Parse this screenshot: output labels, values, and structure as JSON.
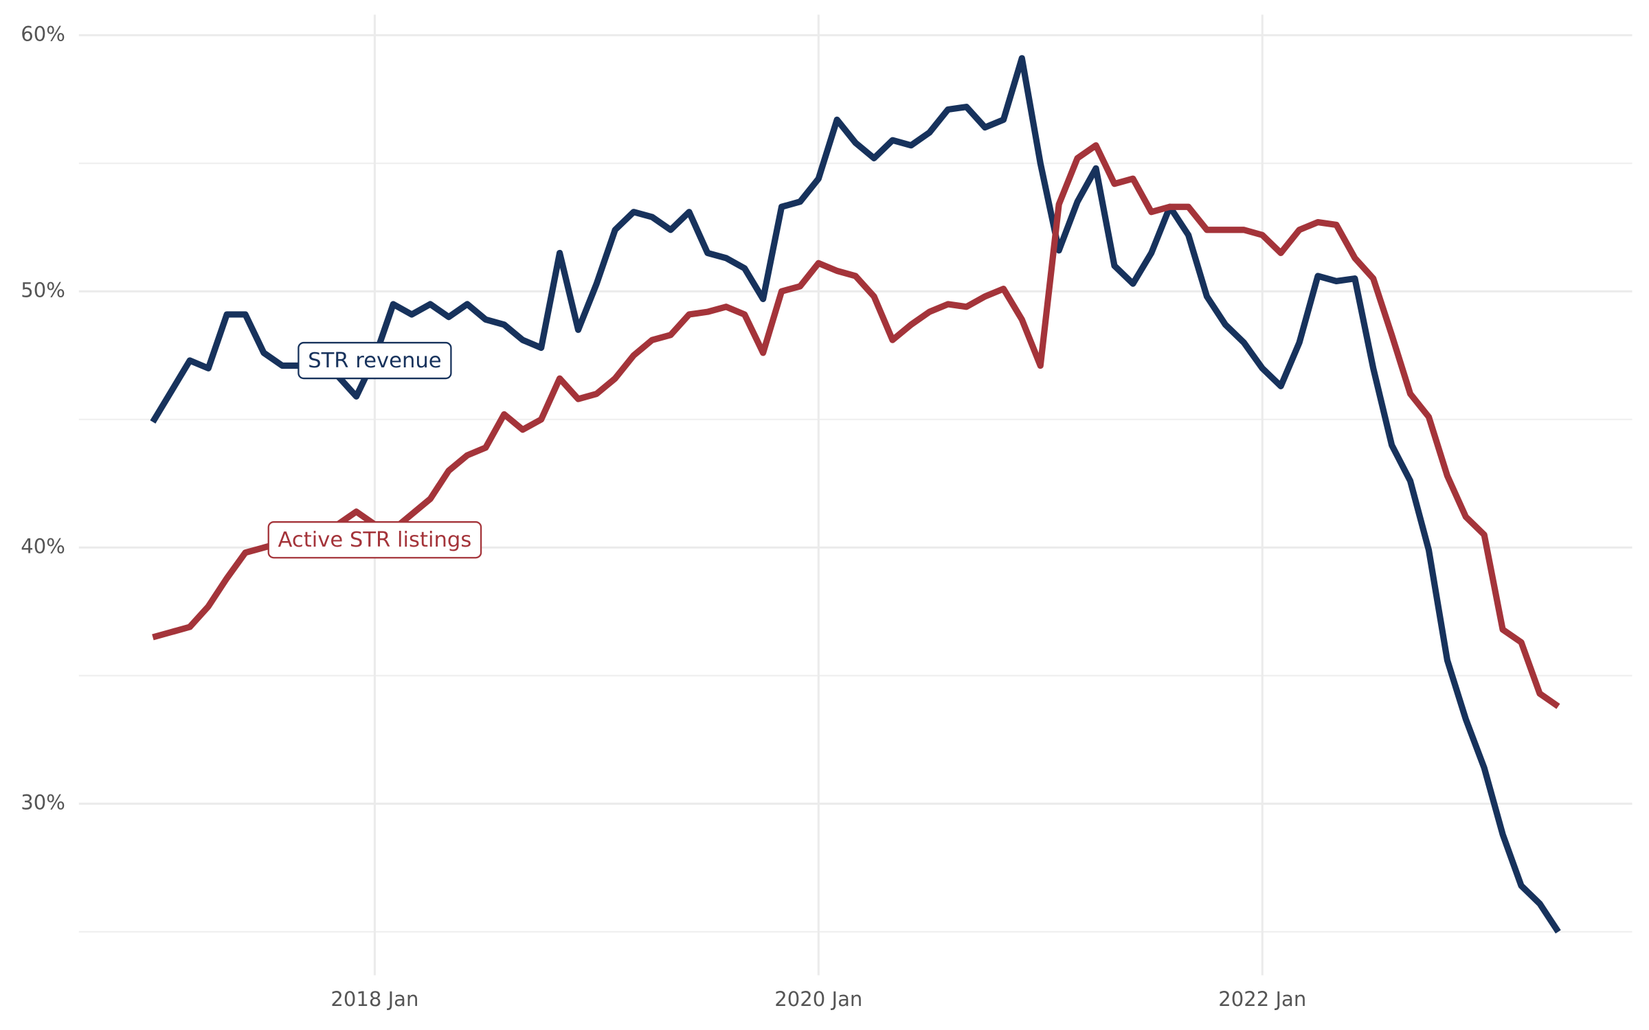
{
  "chart_data": {
    "type": "line",
    "x": [
      "2017-01",
      "2017-02",
      "2017-03",
      "2017-04",
      "2017-05",
      "2017-06",
      "2017-07",
      "2017-08",
      "2017-09",
      "2017-10",
      "2017-11",
      "2017-12",
      "2018-01",
      "2018-02",
      "2018-03",
      "2018-04",
      "2018-05",
      "2018-06",
      "2018-07",
      "2018-08",
      "2018-09",
      "2018-10",
      "2018-11",
      "2018-12",
      "2019-01",
      "2019-02",
      "2019-03",
      "2019-04",
      "2019-05",
      "2019-06",
      "2019-07",
      "2019-08",
      "2019-09",
      "2019-10",
      "2019-11",
      "2019-12",
      "2020-01",
      "2020-02",
      "2020-03",
      "2020-04",
      "2020-05",
      "2020-06",
      "2020-07",
      "2020-08",
      "2020-09",
      "2020-10",
      "2020-11",
      "2020-12",
      "2021-01",
      "2021-02",
      "2021-03",
      "2021-04",
      "2021-05",
      "2021-06",
      "2021-07",
      "2021-08",
      "2021-09",
      "2021-10",
      "2021-11",
      "2021-12",
      "2022-01",
      "2022-02",
      "2022-03",
      "2022-04",
      "2022-05",
      "2022-06",
      "2022-07",
      "2022-08",
      "2022-09",
      "2022-10",
      "2022-11",
      "2022-12",
      "2023-01",
      "2023-02",
      "2023-03",
      "2023-04",
      "2023-05"
    ],
    "series": [
      {
        "name": "STR revenue",
        "color": "#17325c",
        "values": [
          44.9,
          46.1,
          47.3,
          47.0,
          49.1,
          49.1,
          47.6,
          47.1,
          47.1,
          47.1,
          46.7,
          45.9,
          47.4,
          49.5,
          49.1,
          49.5,
          49.0,
          49.5,
          48.9,
          48.7,
          48.1,
          47.8,
          51.5,
          48.5,
          50.3,
          52.4,
          53.1,
          52.9,
          52.4,
          53.1,
          51.5,
          51.3,
          50.9,
          49.7,
          53.3,
          53.5,
          54.4,
          56.7,
          55.8,
          55.2,
          55.9,
          55.7,
          56.2,
          57.1,
          57.2,
          56.4,
          56.7,
          59.1,
          55.0,
          51.6,
          53.5,
          54.8,
          51.0,
          50.3,
          51.5,
          53.3,
          52.2,
          49.8,
          48.7,
          48.0,
          47.0,
          46.3,
          48.0,
          50.6,
          50.4,
          50.5,
          47.0,
          44.0,
          42.6,
          39.9,
          35.6,
          33.3,
          31.4,
          28.8,
          26.8,
          26.1,
          25.0
        ]
      },
      {
        "name": "Active STR listings",
        "color": "#a4343a",
        "values": [
          36.5,
          36.7,
          36.9,
          37.7,
          38.8,
          39.8,
          40.0,
          40.2,
          40.4,
          40.7,
          40.9,
          41.4,
          40.9,
          40.7,
          41.3,
          41.9,
          43.0,
          43.6,
          43.9,
          45.2,
          44.6,
          45.0,
          46.6,
          45.8,
          46.0,
          46.6,
          47.5,
          48.1,
          48.3,
          49.1,
          49.2,
          49.4,
          49.1,
          47.6,
          50.0,
          50.2,
          51.1,
          50.8,
          50.6,
          49.8,
          48.1,
          48.7,
          49.2,
          49.5,
          49.4,
          49.8,
          50.1,
          48.9,
          47.1,
          53.4,
          55.2,
          55.7,
          54.2,
          54.4,
          53.1,
          53.3,
          53.3,
          52.4,
          52.4,
          52.4,
          52.2,
          51.5,
          52.4,
          52.7,
          52.6,
          51.3,
          50.5,
          48.3,
          46.0,
          45.1,
          42.8,
          41.2,
          40.5,
          36.8,
          36.3,
          34.3,
          33.8
        ]
      }
    ],
    "annotations": [
      {
        "text": "STR revenue",
        "x": "2018-01",
        "y": 47.3,
        "color": "#17325c"
      },
      {
        "text": "Active STR listings",
        "x": "2018-01",
        "y": 40.3,
        "color": "#a4343a"
      }
    ],
    "xlim": [
      "2016-09",
      "2023-09"
    ],
    "xticks": [
      {
        "value": "2018-01",
        "label": "2018 Jan"
      },
      {
        "value": "2020-01",
        "label": "2020 Jan"
      },
      {
        "value": "2022-01",
        "label": "2022 Jan"
      }
    ],
    "ylim": [
      23.3,
      60.8
    ],
    "yticks": [
      {
        "value": 30,
        "label": "30%"
      },
      {
        "value": 40,
        "label": "40%"
      },
      {
        "value": 50,
        "label": "50%"
      },
      {
        "value": 60,
        "label": "60%"
      }
    ],
    "yminor": [
      25,
      35,
      45,
      55
    ],
    "grid": true
  }
}
